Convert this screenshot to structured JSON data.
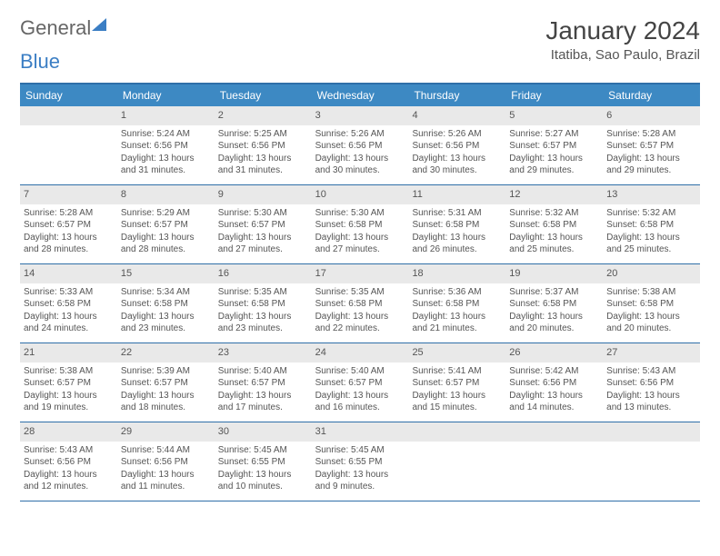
{
  "brand": {
    "general": "General",
    "blue": "Blue"
  },
  "title": "January 2024",
  "location": "Itatiba, Sao Paulo, Brazil",
  "colors": {
    "header_bar": "#3d89c3",
    "week_border": "#2f6fa8",
    "daynum_bg": "#e9e9e9",
    "text": "#555555",
    "brand_blue": "#3b7ec4"
  },
  "weekdays": [
    "Sunday",
    "Monday",
    "Tuesday",
    "Wednesday",
    "Thursday",
    "Friday",
    "Saturday"
  ],
  "weeks": [
    [
      {
        "n": "",
        "sunrise": "",
        "sunset": "",
        "daylight": ""
      },
      {
        "n": "1",
        "sunrise": "Sunrise: 5:24 AM",
        "sunset": "Sunset: 6:56 PM",
        "daylight": "Daylight: 13 hours and 31 minutes."
      },
      {
        "n": "2",
        "sunrise": "Sunrise: 5:25 AM",
        "sunset": "Sunset: 6:56 PM",
        "daylight": "Daylight: 13 hours and 31 minutes."
      },
      {
        "n": "3",
        "sunrise": "Sunrise: 5:26 AM",
        "sunset": "Sunset: 6:56 PM",
        "daylight": "Daylight: 13 hours and 30 minutes."
      },
      {
        "n": "4",
        "sunrise": "Sunrise: 5:26 AM",
        "sunset": "Sunset: 6:56 PM",
        "daylight": "Daylight: 13 hours and 30 minutes."
      },
      {
        "n": "5",
        "sunrise": "Sunrise: 5:27 AM",
        "sunset": "Sunset: 6:57 PM",
        "daylight": "Daylight: 13 hours and 29 minutes."
      },
      {
        "n": "6",
        "sunrise": "Sunrise: 5:28 AM",
        "sunset": "Sunset: 6:57 PM",
        "daylight": "Daylight: 13 hours and 29 minutes."
      }
    ],
    [
      {
        "n": "7",
        "sunrise": "Sunrise: 5:28 AM",
        "sunset": "Sunset: 6:57 PM",
        "daylight": "Daylight: 13 hours and 28 minutes."
      },
      {
        "n": "8",
        "sunrise": "Sunrise: 5:29 AM",
        "sunset": "Sunset: 6:57 PM",
        "daylight": "Daylight: 13 hours and 28 minutes."
      },
      {
        "n": "9",
        "sunrise": "Sunrise: 5:30 AM",
        "sunset": "Sunset: 6:57 PM",
        "daylight": "Daylight: 13 hours and 27 minutes."
      },
      {
        "n": "10",
        "sunrise": "Sunrise: 5:30 AM",
        "sunset": "Sunset: 6:58 PM",
        "daylight": "Daylight: 13 hours and 27 minutes."
      },
      {
        "n": "11",
        "sunrise": "Sunrise: 5:31 AM",
        "sunset": "Sunset: 6:58 PM",
        "daylight": "Daylight: 13 hours and 26 minutes."
      },
      {
        "n": "12",
        "sunrise": "Sunrise: 5:32 AM",
        "sunset": "Sunset: 6:58 PM",
        "daylight": "Daylight: 13 hours and 25 minutes."
      },
      {
        "n": "13",
        "sunrise": "Sunrise: 5:32 AM",
        "sunset": "Sunset: 6:58 PM",
        "daylight": "Daylight: 13 hours and 25 minutes."
      }
    ],
    [
      {
        "n": "14",
        "sunrise": "Sunrise: 5:33 AM",
        "sunset": "Sunset: 6:58 PM",
        "daylight": "Daylight: 13 hours and 24 minutes."
      },
      {
        "n": "15",
        "sunrise": "Sunrise: 5:34 AM",
        "sunset": "Sunset: 6:58 PM",
        "daylight": "Daylight: 13 hours and 23 minutes."
      },
      {
        "n": "16",
        "sunrise": "Sunrise: 5:35 AM",
        "sunset": "Sunset: 6:58 PM",
        "daylight": "Daylight: 13 hours and 23 minutes."
      },
      {
        "n": "17",
        "sunrise": "Sunrise: 5:35 AM",
        "sunset": "Sunset: 6:58 PM",
        "daylight": "Daylight: 13 hours and 22 minutes."
      },
      {
        "n": "18",
        "sunrise": "Sunrise: 5:36 AM",
        "sunset": "Sunset: 6:58 PM",
        "daylight": "Daylight: 13 hours and 21 minutes."
      },
      {
        "n": "19",
        "sunrise": "Sunrise: 5:37 AM",
        "sunset": "Sunset: 6:58 PM",
        "daylight": "Daylight: 13 hours and 20 minutes."
      },
      {
        "n": "20",
        "sunrise": "Sunrise: 5:38 AM",
        "sunset": "Sunset: 6:58 PM",
        "daylight": "Daylight: 13 hours and 20 minutes."
      }
    ],
    [
      {
        "n": "21",
        "sunrise": "Sunrise: 5:38 AM",
        "sunset": "Sunset: 6:57 PM",
        "daylight": "Daylight: 13 hours and 19 minutes."
      },
      {
        "n": "22",
        "sunrise": "Sunrise: 5:39 AM",
        "sunset": "Sunset: 6:57 PM",
        "daylight": "Daylight: 13 hours and 18 minutes."
      },
      {
        "n": "23",
        "sunrise": "Sunrise: 5:40 AM",
        "sunset": "Sunset: 6:57 PM",
        "daylight": "Daylight: 13 hours and 17 minutes."
      },
      {
        "n": "24",
        "sunrise": "Sunrise: 5:40 AM",
        "sunset": "Sunset: 6:57 PM",
        "daylight": "Daylight: 13 hours and 16 minutes."
      },
      {
        "n": "25",
        "sunrise": "Sunrise: 5:41 AM",
        "sunset": "Sunset: 6:57 PM",
        "daylight": "Daylight: 13 hours and 15 minutes."
      },
      {
        "n": "26",
        "sunrise": "Sunrise: 5:42 AM",
        "sunset": "Sunset: 6:56 PM",
        "daylight": "Daylight: 13 hours and 14 minutes."
      },
      {
        "n": "27",
        "sunrise": "Sunrise: 5:43 AM",
        "sunset": "Sunset: 6:56 PM",
        "daylight": "Daylight: 13 hours and 13 minutes."
      }
    ],
    [
      {
        "n": "28",
        "sunrise": "Sunrise: 5:43 AM",
        "sunset": "Sunset: 6:56 PM",
        "daylight": "Daylight: 13 hours and 12 minutes."
      },
      {
        "n": "29",
        "sunrise": "Sunrise: 5:44 AM",
        "sunset": "Sunset: 6:56 PM",
        "daylight": "Daylight: 13 hours and 11 minutes."
      },
      {
        "n": "30",
        "sunrise": "Sunrise: 5:45 AM",
        "sunset": "Sunset: 6:55 PM",
        "daylight": "Daylight: 13 hours and 10 minutes."
      },
      {
        "n": "31",
        "sunrise": "Sunrise: 5:45 AM",
        "sunset": "Sunset: 6:55 PM",
        "daylight": "Daylight: 13 hours and 9 minutes."
      },
      {
        "n": "",
        "sunrise": "",
        "sunset": "",
        "daylight": ""
      },
      {
        "n": "",
        "sunrise": "",
        "sunset": "",
        "daylight": ""
      },
      {
        "n": "",
        "sunrise": "",
        "sunset": "",
        "daylight": ""
      }
    ]
  ]
}
